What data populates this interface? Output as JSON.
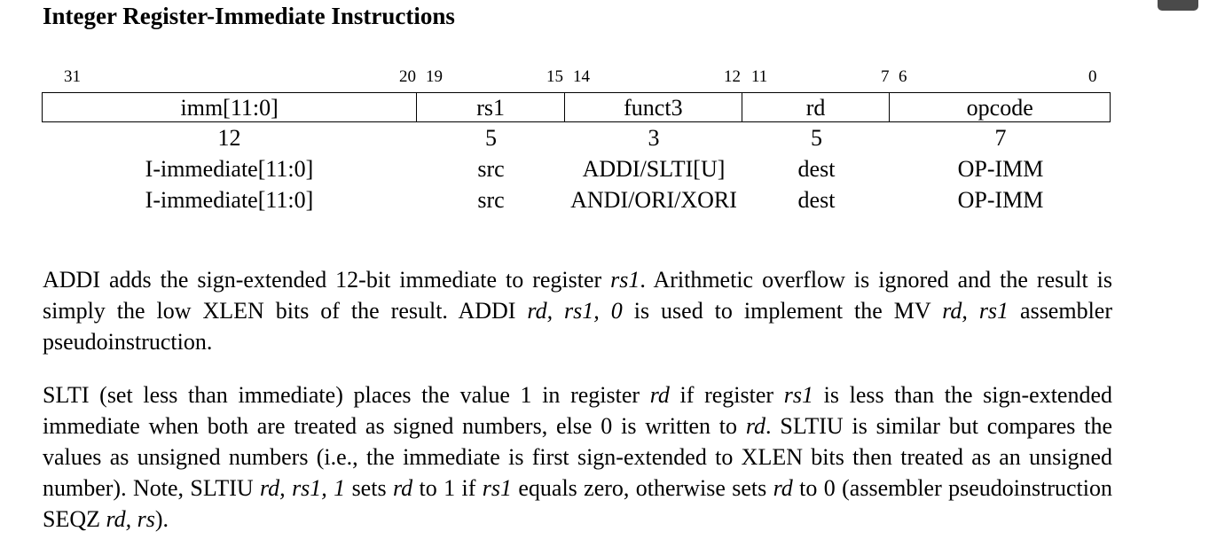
{
  "heading": "Integer Register-Immediate Instructions",
  "bit_positions": [
    "31",
    "20",
    "19",
    "15",
    "14",
    "12",
    "11",
    "7",
    "6",
    "0"
  ],
  "fields": [
    "imm[11:0]",
    "rs1",
    "funct3",
    "rd",
    "opcode"
  ],
  "widths": [
    "12",
    "5",
    "3",
    "5",
    "7"
  ],
  "rows": [
    [
      "I-immediate[11:0]",
      "src",
      "ADDI/SLTI[U]",
      "dest",
      "OP-IMM"
    ],
    [
      "I-immediate[11:0]",
      "src",
      "ANDI/ORI/XORI",
      "dest",
      "OP-IMM"
    ]
  ],
  "paragraphs": {
    "p1": {
      "t1": "ADDI adds the sign-extended 12-bit immediate to register ",
      "i1": "rs1",
      "t2": ". Arithmetic overflow is ignored and the result is simply the low XLEN bits of the result. ADDI ",
      "i2": "rd, rs1, 0",
      "t3": " is used to implement the MV ",
      "i3": "rd, rs1",
      "t4": " assembler pseudoinstruction."
    },
    "p2": {
      "t1": "SLTI (set less than immediate) places the value 1 in register ",
      "i1": "rd",
      "t2": " if register ",
      "i2": "rs1",
      "t3": " is less than the sign-extended immediate when both are treated as signed numbers, else 0 is written to ",
      "i3": "rd",
      "t4": ". SLTIU is similar but compares the values as unsigned numbers (i.e., the immediate is first sign-extended to XLEN bits then treated as an unsigned number). Note, SLTIU ",
      "i4": "rd, rs1, 1",
      "t5": " sets ",
      "i5": "rd",
      "t6": " to 1 if ",
      "i6": "rs1",
      "t7": " equals zero, otherwise sets ",
      "i7": "rd",
      "t8": " to 0 (assembler pseudoinstruction SEQZ ",
      "i8": "rd, rs",
      "t9": ")."
    }
  }
}
